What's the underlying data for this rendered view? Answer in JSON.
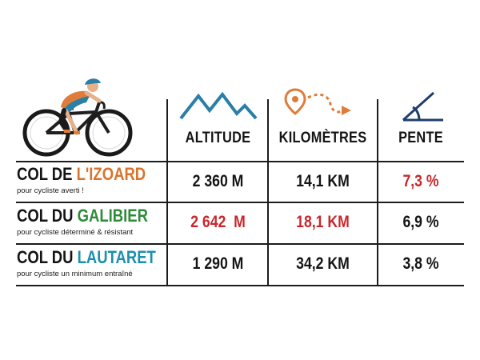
{
  "header": {
    "columns": [
      {
        "label": "ALTITUDE",
        "icon": "mountain-icon"
      },
      {
        "label": "KILOMÈTRES",
        "icon": "route-pin-icon"
      },
      {
        "label": "PENTE",
        "icon": "slope-angle-icon"
      }
    ],
    "illustration": "cyclist-icon"
  },
  "rows": [
    {
      "prefix": "COL DE ",
      "name": "L'IZOARD",
      "name_color": "#d9742c",
      "subtitle": "pour cycliste averti !",
      "altitude": "2 360 M",
      "kilometres": "14,1 KM",
      "pente": "7,3 %"
    },
    {
      "prefix": "COL DU ",
      "name": "GALIBIER",
      "name_color": "#2e8b3a",
      "subtitle": "pour cycliste déterminé & résistant",
      "altitude": "2 642  M",
      "kilometres": "18,1 KM",
      "pente": "6,9 %"
    },
    {
      "prefix": "COL DU ",
      "name": "LAUTARET",
      "name_color": "#1b8fb0",
      "subtitle": "pour cycliste un minimum entraîné",
      "altitude": "1 290 M",
      "kilometres": "34,2 KM",
      "pente": "3,8 %"
    }
  ],
  "colors": {
    "highlight_red": "#c8282c",
    "icon_blue": "#2a7fa6",
    "icon_orange": "#e07b39",
    "line": "#1c1c1c"
  }
}
